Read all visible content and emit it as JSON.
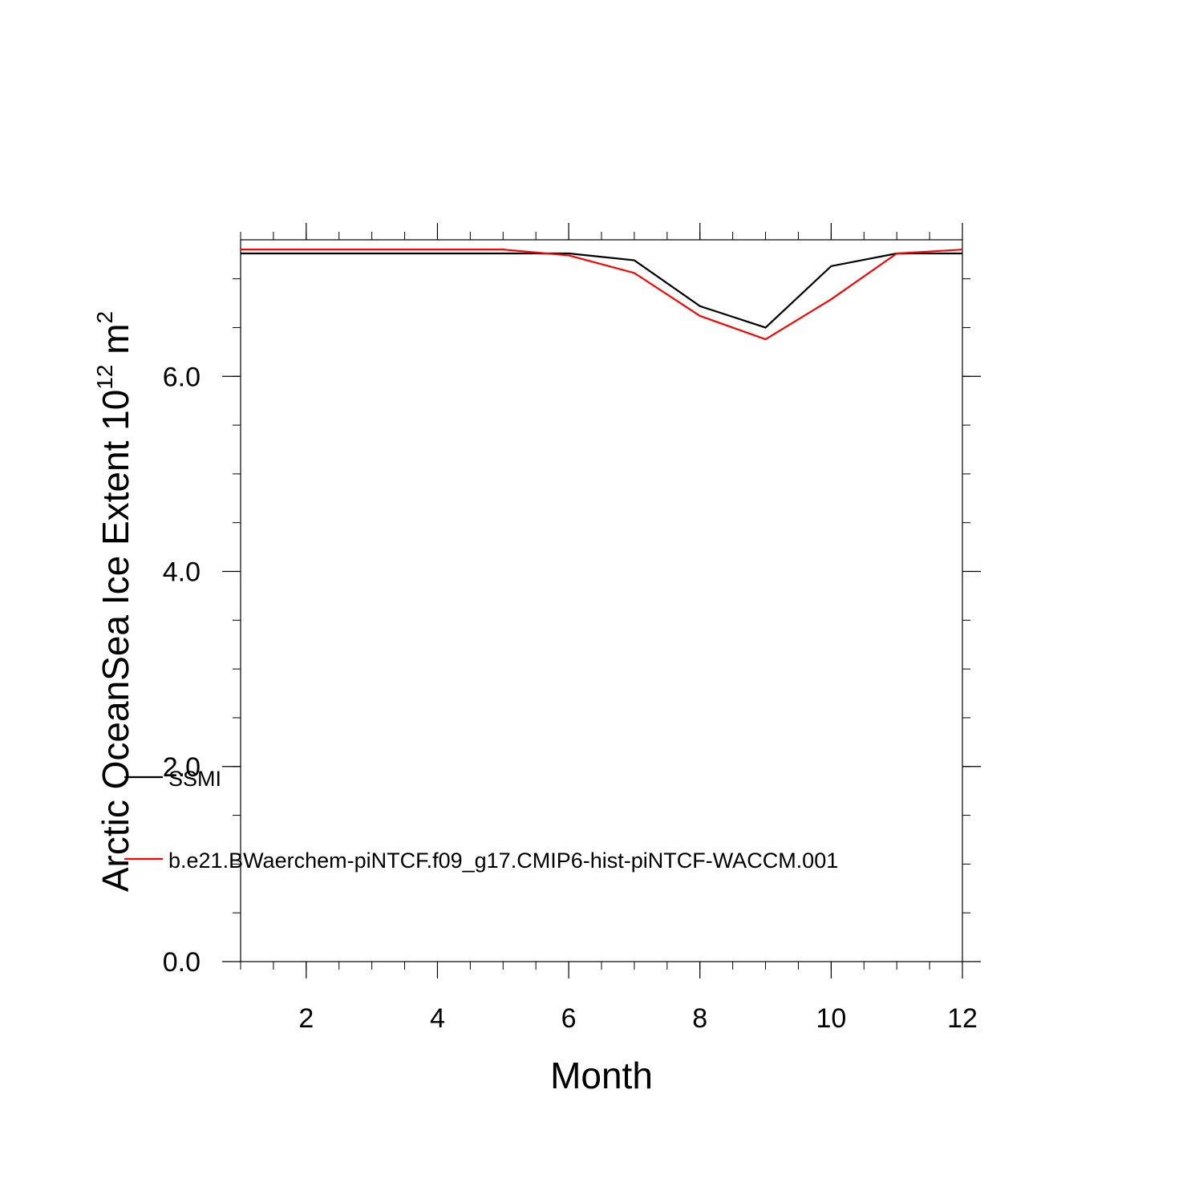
{
  "chart_data": {
    "type": "line",
    "xlabel": "Month",
    "ylabel": {
      "main": "Arctic OceanSea Ice Extent 10",
      "exp1": "12",
      "unit": " m",
      "exp2": "2"
    },
    "xlim": [
      1,
      12
    ],
    "ylim": [
      0,
      7.4
    ],
    "xticks": [
      2,
      4,
      6,
      8,
      10,
      12
    ],
    "xtick_labels": [
      "2",
      "4",
      "6",
      "8",
      "10",
      "12"
    ],
    "yticks": [
      0,
      2,
      4,
      6
    ],
    "ytick_labels": [
      "0.0",
      "2.0",
      "4.0",
      "6.0"
    ],
    "grid": false,
    "legend_position": "lower-left",
    "x": [
      1,
      2,
      3,
      4,
      5,
      6,
      7,
      8,
      9,
      10,
      11,
      12
    ],
    "series": [
      {
        "name": "SSMI",
        "color": "#000000",
        "values": [
          7.26,
          7.26,
          7.26,
          7.26,
          7.26,
          7.26,
          7.19,
          6.72,
          6.5,
          7.13,
          7.26,
          7.26
        ]
      },
      {
        "name": "b.e21.BWaerchem-piNTCF.f09_g17.CMIP6-hist-piNTCF-WACCM.001",
        "color": "#ff0000",
        "values": [
          7.3,
          7.3,
          7.3,
          7.3,
          7.3,
          7.24,
          7.06,
          6.62,
          6.38,
          6.79,
          7.26,
          7.3
        ]
      }
    ]
  }
}
